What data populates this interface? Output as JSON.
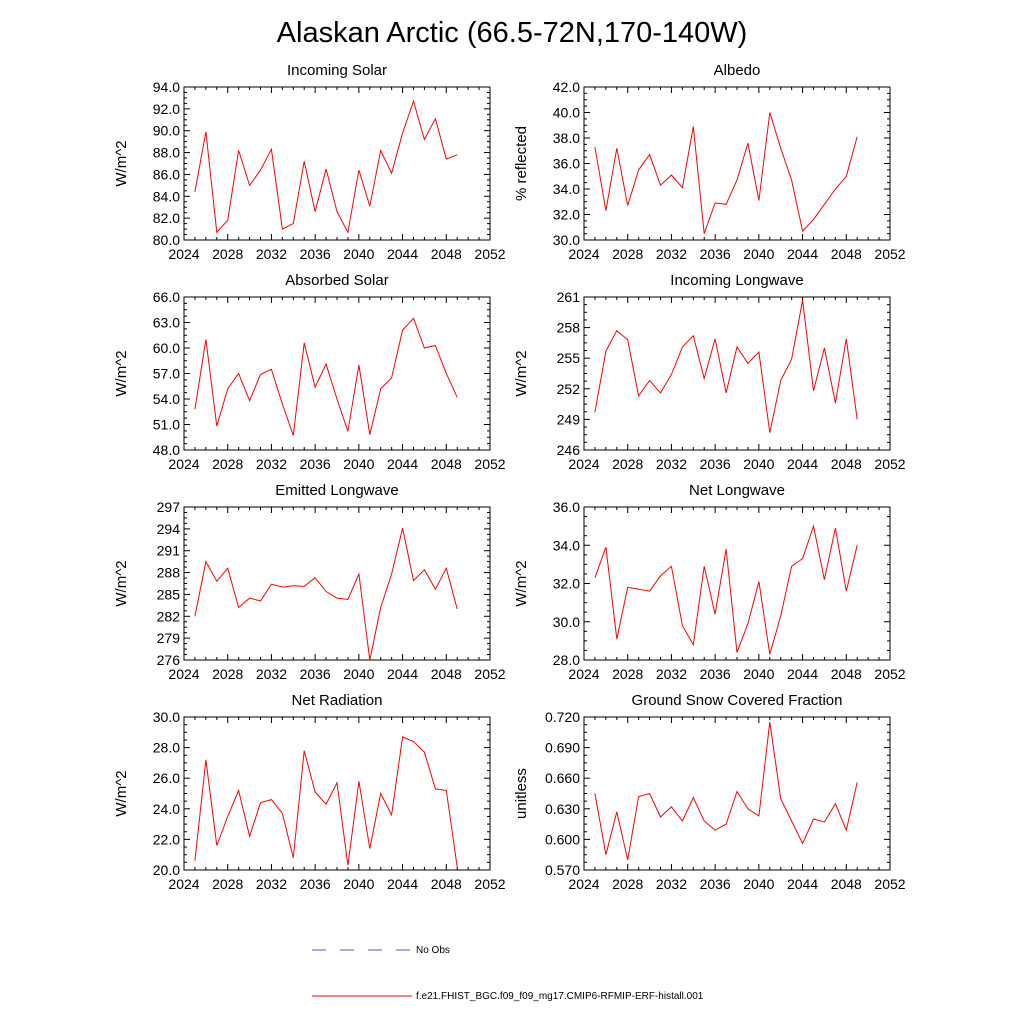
{
  "figure": {
    "title": "Alaskan Arctic (66.5-72N,170-140W)",
    "series_color": "#ff0000",
    "obs_color": "#5050c8"
  },
  "legend": {
    "obs_label": "No Obs",
    "model_label": "f.e21.FHIST_BGC.f09_f09_mg17.CMIP6-RFMIP-ERF-histall.001"
  },
  "chart_data": [
    {
      "id": "incoming-solar",
      "type": "line",
      "title": "Incoming Solar",
      "xlabel": "",
      "ylabel": "W/m^2",
      "xlim": [
        2024,
        2052
      ],
      "ylim": [
        80,
        94
      ],
      "xticks": [
        2024,
        2028,
        2032,
        2036,
        2040,
        2044,
        2048,
        2052
      ],
      "yticks": [
        80,
        82,
        84,
        86,
        88,
        90,
        92,
        94
      ],
      "ytick_labels": [
        "80.0",
        "82.0",
        "84.0",
        "86.0",
        "88.0",
        "90.0",
        "92.0",
        "94.0"
      ],
      "x": [
        2025,
        2026,
        2027,
        2028,
        2029,
        2030,
        2031,
        2032,
        2033,
        2034,
        2035,
        2036,
        2037,
        2038,
        2039,
        2040,
        2041,
        2042,
        2043,
        2044,
        2045,
        2046,
        2047,
        2048,
        2049
      ],
      "values": [
        84.4,
        89.9,
        80.7,
        81.8,
        88.2,
        85.0,
        86.4,
        88.3,
        81.0,
        81.5,
        87.2,
        82.6,
        86.5,
        82.6,
        80.7,
        86.4,
        83.1,
        88.2,
        86.1,
        89.8,
        92.7,
        89.2,
        91.1,
        87.4,
        87.8
      ]
    },
    {
      "id": "albedo",
      "type": "line",
      "title": "Albedo",
      "xlabel": "",
      "ylabel": "% reflected",
      "xlim": [
        2024,
        2052
      ],
      "ylim": [
        30,
        42
      ],
      "xticks": [
        2024,
        2028,
        2032,
        2036,
        2040,
        2044,
        2048,
        2052
      ],
      "yticks": [
        30,
        32,
        34,
        36,
        38,
        40,
        42
      ],
      "ytick_labels": [
        "30.0",
        "32.0",
        "34.0",
        "36.0",
        "38.0",
        "40.0",
        "42.0"
      ],
      "x": [
        2025,
        2026,
        2027,
        2028,
        2029,
        2030,
        2031,
        2032,
        2033,
        2034,
        2035,
        2036,
        2037,
        2038,
        2039,
        2040,
        2041,
        2042,
        2043,
        2044,
        2045,
        2046,
        2047,
        2048,
        2049
      ],
      "values": [
        37.3,
        32.3,
        37.2,
        32.7,
        35.5,
        36.7,
        34.3,
        35.1,
        34.1,
        38.9,
        30.5,
        32.9,
        32.8,
        34.7,
        37.6,
        33.1,
        40.0,
        37.2,
        34.7,
        30.7,
        31.6,
        32.8,
        34.0,
        35.0,
        38.1
      ]
    },
    {
      "id": "absorbed-solar",
      "type": "line",
      "title": "Absorbed Solar",
      "xlabel": "",
      "ylabel": "W/m^2",
      "xlim": [
        2024,
        2052
      ],
      "ylim": [
        48,
        66
      ],
      "xticks": [
        2024,
        2028,
        2032,
        2036,
        2040,
        2044,
        2048,
        2052
      ],
      "yticks": [
        48,
        51,
        54,
        57,
        60,
        63,
        66
      ],
      "ytick_labels": [
        "48.0",
        "51.0",
        "54.0",
        "57.0",
        "60.0",
        "63.0",
        "66.0"
      ],
      "x": [
        2025,
        2026,
        2027,
        2028,
        2029,
        2030,
        2031,
        2032,
        2033,
        2034,
        2035,
        2036,
        2037,
        2038,
        2039,
        2040,
        2041,
        2042,
        2043,
        2044,
        2045,
        2046,
        2047,
        2048,
        2049
      ],
      "values": [
        52.8,
        61.0,
        50.8,
        55.2,
        57.0,
        53.8,
        56.9,
        57.5,
        53.4,
        49.7,
        60.6,
        55.4,
        58.1,
        54.0,
        50.2,
        58.0,
        49.8,
        55.2,
        56.5,
        62.1,
        63.5,
        60.0,
        60.3,
        57.0,
        54.2
      ]
    },
    {
      "id": "incoming-longwave",
      "type": "line",
      "title": "Incoming Longwave",
      "xlabel": "",
      "ylabel": "W/m^2",
      "xlim": [
        2024,
        2052
      ],
      "ylim": [
        246,
        261
      ],
      "xticks": [
        2024,
        2028,
        2032,
        2036,
        2040,
        2044,
        2048,
        2052
      ],
      "yticks": [
        246,
        249,
        252,
        255,
        258,
        261
      ],
      "ytick_labels": [
        "246",
        "249",
        "252",
        "255",
        "258",
        "261"
      ],
      "x": [
        2025,
        2026,
        2027,
        2028,
        2029,
        2030,
        2031,
        2032,
        2033,
        2034,
        2035,
        2036,
        2037,
        2038,
        2039,
        2040,
        2041,
        2042,
        2043,
        2044,
        2045,
        2046,
        2047,
        2048,
        2049
      ],
      "values": [
        249.7,
        255.7,
        257.7,
        256.8,
        251.3,
        252.8,
        251.6,
        253.4,
        256.1,
        257.2,
        253.0,
        256.9,
        251.6,
        256.1,
        254.5,
        255.6,
        247.7,
        252.8,
        254.9,
        260.7,
        251.8,
        256.0,
        250.6,
        256.9,
        249.0
      ]
    },
    {
      "id": "emitted-longwave",
      "type": "line",
      "title": "Emitted Longwave",
      "xlabel": "",
      "ylabel": "W/m^2",
      "xlim": [
        2024,
        2052
      ],
      "ylim": [
        276,
        297
      ],
      "xticks": [
        2024,
        2028,
        2032,
        2036,
        2040,
        2044,
        2048,
        2052
      ],
      "yticks": [
        276,
        279,
        282,
        285,
        288,
        291,
        294,
        297
      ],
      "ytick_labels": [
        "276",
        "279",
        "282",
        "285",
        "288",
        "291",
        "294",
        "297"
      ],
      "x": [
        2025,
        2026,
        2027,
        2028,
        2029,
        2030,
        2031,
        2032,
        2033,
        2034,
        2035,
        2036,
        2037,
        2038,
        2039,
        2040,
        2041,
        2042,
        2043,
        2044,
        2045,
        2046,
        2047,
        2048,
        2049
      ],
      "values": [
        282.0,
        289.5,
        286.8,
        288.6,
        283.2,
        284.5,
        284.1,
        286.4,
        286.0,
        286.2,
        286.1,
        287.3,
        285.4,
        284.5,
        284.3,
        287.8,
        276.0,
        283.2,
        287.8,
        294.1,
        286.9,
        288.4,
        285.7,
        288.6,
        283.0
      ]
    },
    {
      "id": "net-longwave",
      "type": "line",
      "title": "Net Longwave",
      "xlabel": "",
      "ylabel": "W/m^2",
      "xlim": [
        2024,
        2052
      ],
      "ylim": [
        28,
        36
      ],
      "xticks": [
        2024,
        2028,
        2032,
        2036,
        2040,
        2044,
        2048,
        2052
      ],
      "yticks": [
        28,
        30,
        32,
        34,
        36
      ],
      "ytick_labels": [
        "28.0",
        "30.0",
        "32.0",
        "34.0",
        "36.0"
      ],
      "x": [
        2025,
        2026,
        2027,
        2028,
        2029,
        2030,
        2031,
        2032,
        2033,
        2034,
        2035,
        2036,
        2037,
        2038,
        2039,
        2040,
        2041,
        2042,
        2043,
        2044,
        2045,
        2046,
        2047,
        2048,
        2049
      ],
      "values": [
        32.3,
        33.9,
        29.1,
        31.8,
        31.7,
        31.6,
        32.4,
        32.9,
        29.8,
        28.8,
        32.9,
        30.4,
        33.8,
        28.4,
        29.9,
        32.1,
        28.3,
        30.3,
        32.9,
        33.3,
        35.0,
        32.2,
        34.9,
        31.6,
        34.0
      ]
    },
    {
      "id": "net-radiation",
      "type": "line",
      "title": "Net Radiation",
      "xlabel": "",
      "ylabel": "W/m^2",
      "xlim": [
        2024,
        2052
      ],
      "ylim": [
        20,
        30
      ],
      "xticks": [
        2024,
        2028,
        2032,
        2036,
        2040,
        2044,
        2048,
        2052
      ],
      "yticks": [
        20,
        22,
        24,
        26,
        28,
        30
      ],
      "ytick_labels": [
        "20.0",
        "22.0",
        "24.0",
        "26.0",
        "28.0",
        "30.0"
      ],
      "x": [
        2025,
        2026,
        2027,
        2028,
        2029,
        2030,
        2031,
        2032,
        2033,
        2034,
        2035,
        2036,
        2037,
        2038,
        2039,
        2040,
        2041,
        2042,
        2043,
        2044,
        2045,
        2046,
        2047,
        2048,
        2049
      ],
      "values": [
        20.6,
        27.2,
        21.6,
        23.5,
        25.2,
        22.2,
        24.4,
        24.6,
        23.7,
        20.8,
        27.8,
        25.1,
        24.3,
        25.7,
        20.3,
        25.8,
        21.4,
        25.0,
        23.6,
        28.7,
        28.4,
        27.7,
        25.3,
        25.2,
        20.2
      ]
    },
    {
      "id": "ground-snow-covered-fraction",
      "type": "line",
      "title": "Ground Snow Covered Fraction",
      "xlabel": "",
      "ylabel": "unitless",
      "xlim": [
        2024,
        2052
      ],
      "ylim": [
        0.57,
        0.72
      ],
      "xticks": [
        2024,
        2028,
        2032,
        2036,
        2040,
        2044,
        2048,
        2052
      ],
      "yticks": [
        0.57,
        0.6,
        0.63,
        0.66,
        0.69,
        0.72
      ],
      "ytick_labels": [
        "0.570",
        "0.600",
        "0.630",
        "0.660",
        "0.690",
        "0.720"
      ],
      "x": [
        2025,
        2026,
        2027,
        2028,
        2029,
        2030,
        2031,
        2032,
        2033,
        2034,
        2035,
        2036,
        2037,
        2038,
        2039,
        2040,
        2041,
        2042,
        2043,
        2044,
        2045,
        2046,
        2047,
        2048,
        2049
      ],
      "values": [
        0.645,
        0.585,
        0.627,
        0.58,
        0.642,
        0.645,
        0.622,
        0.632,
        0.618,
        0.641,
        0.618,
        0.609,
        0.615,
        0.647,
        0.63,
        0.623,
        0.715,
        0.64,
        0.618,
        0.596,
        0.62,
        0.617,
        0.635,
        0.609,
        0.656
      ]
    }
  ]
}
